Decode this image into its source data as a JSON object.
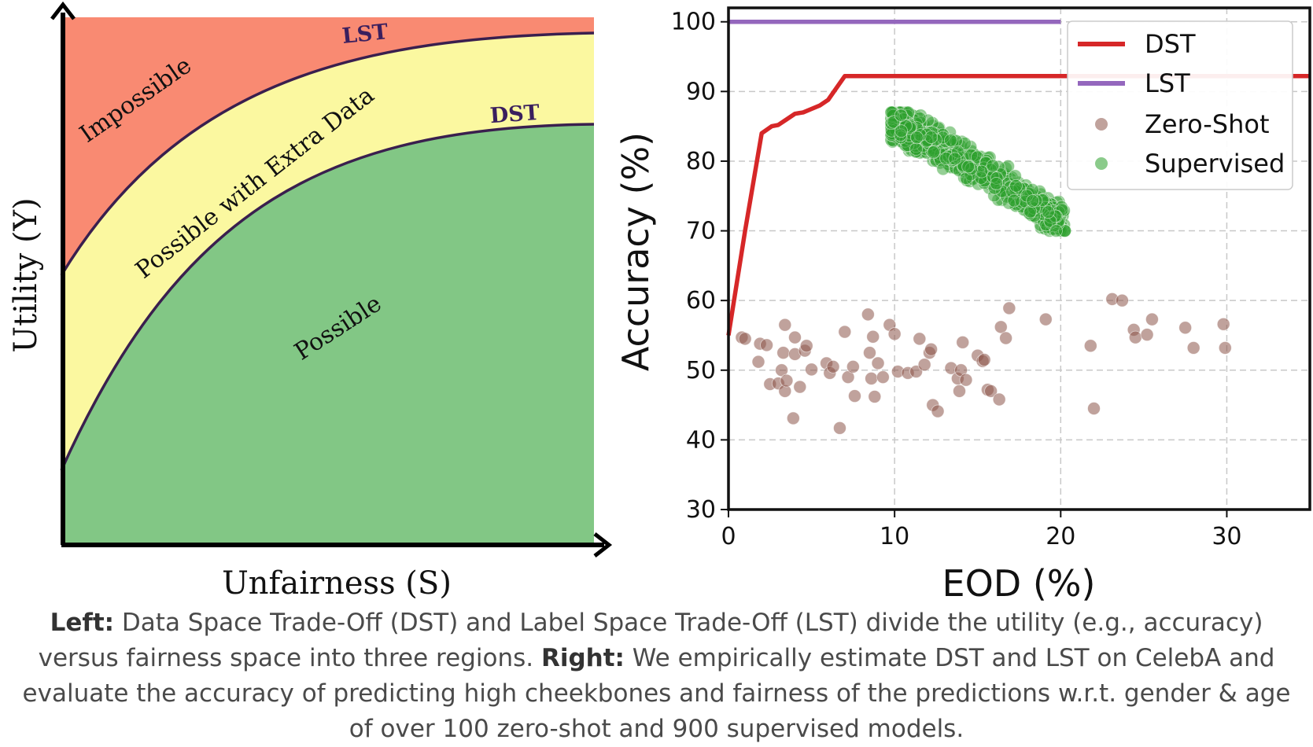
{
  "chart_data": [
    {
      "type": "area",
      "xlabel": "Unfairness (S)",
      "ylabel": "Utility (Y)",
      "regions": [
        {
          "name": "Impossible",
          "color": "#f98a72"
        },
        {
          "name": "Possible with Extra Data",
          "color": "#fbf8a0"
        },
        {
          "name": "Possible",
          "color": "#82c785"
        }
      ],
      "curves": [
        {
          "name": "LST",
          "color": "#3a1f4e"
        },
        {
          "name": "DST",
          "color": "#3a1f4e"
        }
      ]
    },
    {
      "type": "scatter",
      "xlabel": "EOD (%)",
      "ylabel": "Accuracy (%)",
      "xlim": [
        0,
        35
      ],
      "ylim": [
        30,
        102
      ],
      "xticks": [
        0,
        10,
        20,
        30
      ],
      "yticks": [
        30,
        40,
        50,
        60,
        70,
        80,
        90,
        100
      ],
      "grid": true,
      "legend_position": "top-right",
      "series": [
        {
          "name": "DST",
          "kind": "line",
          "color": "#d62728",
          "x": [
            0,
            1,
            2,
            2.6,
            3,
            3.5,
            4,
            4.5,
            5,
            5.5,
            6,
            6.5,
            7,
            8,
            10,
            15,
            20,
            25,
            30,
            35
          ],
          "y": [
            55,
            70,
            84,
            85,
            85.2,
            86,
            86.8,
            87,
            87.5,
            88,
            88.8,
            90.5,
            92.2,
            92.2,
            92.2,
            92.2,
            92.2,
            92.2,
            92.2,
            92.2
          ]
        },
        {
          "name": "LST",
          "kind": "line",
          "color": "#9467bd",
          "x": [
            0,
            20
          ],
          "y": [
            100,
            100
          ]
        },
        {
          "name": "Zero-Shot",
          "kind": "scatter",
          "color": "#8c564b",
          "points": [
            [
              0.8,
              54.7
            ],
            [
              1.0,
              54.5
            ],
            [
              1.8,
              51.2
            ],
            [
              1.9,
              53.8
            ],
            [
              2.3,
              53.6
            ],
            [
              2.5,
              48.0
            ],
            [
              3.0,
              48.1
            ],
            [
              3.2,
              50.0
            ],
            [
              3.3,
              52.5
            ],
            [
              3.4,
              56.5
            ],
            [
              3.4,
              47.0
            ],
            [
              3.5,
              48.5
            ],
            [
              3.9,
              43.1
            ],
            [
              4.0,
              52.3
            ],
            [
              4.0,
              54.7
            ],
            [
              4.3,
              47.6
            ],
            [
              4.6,
              52.8
            ],
            [
              4.7,
              53.5
            ],
            [
              5.0,
              50.1
            ],
            [
              5.9,
              51.0
            ],
            [
              6.1,
              49.6
            ],
            [
              6.3,
              50.5
            ],
            [
              6.7,
              41.7
            ],
            [
              7.0,
              55.5
            ],
            [
              7.2,
              49.0
            ],
            [
              7.5,
              50.5
            ],
            [
              7.6,
              46.3
            ],
            [
              8.4,
              58.0
            ],
            [
              8.5,
              52.5
            ],
            [
              8.6,
              48.8
            ],
            [
              8.7,
              54.8
            ],
            [
              8.8,
              46.2
            ],
            [
              9.0,
              51.0
            ],
            [
              9.3,
              49.0
            ],
            [
              9.7,
              56.5
            ],
            [
              10.0,
              55.2
            ],
            [
              10.2,
              49.8
            ],
            [
              10.8,
              49.6
            ],
            [
              11.3,
              49.8
            ],
            [
              11.5,
              54.5
            ],
            [
              11.8,
              50.8
            ],
            [
              12.1,
              52.5
            ],
            [
              12.2,
              53.0
            ],
            [
              12.3,
              45.0
            ],
            [
              12.6,
              44.1
            ],
            [
              13.4,
              50.3
            ],
            [
              13.8,
              48.8
            ],
            [
              13.9,
              47.0
            ],
            [
              14.0,
              50.0
            ],
            [
              14.1,
              54.0
            ],
            [
              14.3,
              48.6
            ],
            [
              15.0,
              52.1
            ],
            [
              15.3,
              51.3
            ],
            [
              15.4,
              51.5
            ],
            [
              15.6,
              47.2
            ],
            [
              15.8,
              47.0
            ],
            [
              16.3,
              45.8
            ],
            [
              16.4,
              56.2
            ],
            [
              16.7,
              54.6
            ],
            [
              16.9,
              58.9
            ],
            [
              19.1,
              57.3
            ],
            [
              21.8,
              53.5
            ],
            [
              22.0,
              44.5
            ],
            [
              23.1,
              60.2
            ],
            [
              23.7,
              60.0
            ],
            [
              24.4,
              55.8
            ],
            [
              24.5,
              54.7
            ],
            [
              25.2,
              55.1
            ],
            [
              25.5,
              57.3
            ],
            [
              27.5,
              56.1
            ],
            [
              28.0,
              53.2
            ],
            [
              29.8,
              56.6
            ],
            [
              29.9,
              53.2
            ]
          ]
        },
        {
          "name": "Supervised",
          "kind": "scatter",
          "color": "#2ca02c",
          "cluster": {
            "x_range": [
              9.5,
              20.5
            ],
            "y_range": [
              70,
              87
            ],
            "count": 900
          }
        }
      ]
    }
  ],
  "caption": {
    "left_label": "Left:",
    "left_text": " Data Space Trade-Off (DST) and Label Space Trade-Off (LST) divide the utility (e.g., accuracy) versus fairness space into three regions. ",
    "right_label": "Right:",
    "right_text": " We empirically estimate DST and LST on CelebA and evaluate the accuracy of predicting high cheekbones and fairness of the predictions w.r.t. gender & age of over 100 zero-shot and 900 supervised models."
  }
}
